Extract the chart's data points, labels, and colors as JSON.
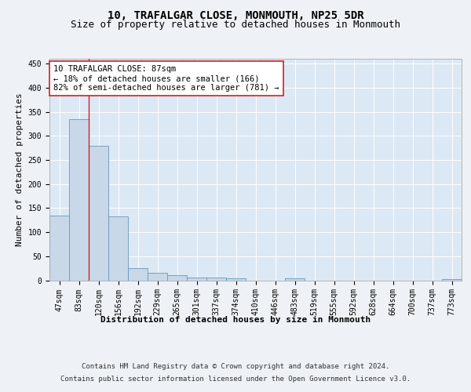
{
  "title": "10, TRAFALGAR CLOSE, MONMOUTH, NP25 5DR",
  "subtitle": "Size of property relative to detached houses in Monmouth",
  "xlabel": "Distribution of detached houses by size in Monmouth",
  "ylabel": "Number of detached properties",
  "bar_labels": [
    "47sqm",
    "83sqm",
    "120sqm",
    "156sqm",
    "192sqm",
    "229sqm",
    "265sqm",
    "301sqm",
    "337sqm",
    "374sqm",
    "410sqm",
    "446sqm",
    "483sqm",
    "519sqm",
    "555sqm",
    "592sqm",
    "628sqm",
    "664sqm",
    "700sqm",
    "737sqm",
    "773sqm"
  ],
  "bar_values": [
    135,
    335,
    280,
    133,
    25,
    15,
    10,
    6,
    5,
    4,
    0,
    0,
    4,
    0,
    0,
    0,
    0,
    0,
    0,
    0,
    3
  ],
  "bar_color": "#c8d8e8",
  "bar_edge_color": "#6699bb",
  "vline_x": 1.5,
  "vline_color": "#cc2222",
  "annotation_text": "10 TRAFALGAR CLOSE: 87sqm\n← 18% of detached houses are smaller (166)\n82% of semi-detached houses are larger (781) →",
  "annotation_box_color": "#ffffff",
  "annotation_box_edge": "#cc2222",
  "ylim": [
    0,
    460
  ],
  "yticks": [
    0,
    50,
    100,
    150,
    200,
    250,
    300,
    350,
    400,
    450
  ],
  "footer_line1": "Contains HM Land Registry data © Crown copyright and database right 2024.",
  "footer_line2": "Contains public sector information licensed under the Open Government Licence v3.0.",
  "bg_color": "#eef2f6",
  "plot_bg_color": "#dce8f4",
  "title_fontsize": 10,
  "subtitle_fontsize": 9,
  "axis_label_fontsize": 8,
  "tick_fontsize": 7,
  "annotation_fontsize": 7.5,
  "footer_fontsize": 6.5
}
